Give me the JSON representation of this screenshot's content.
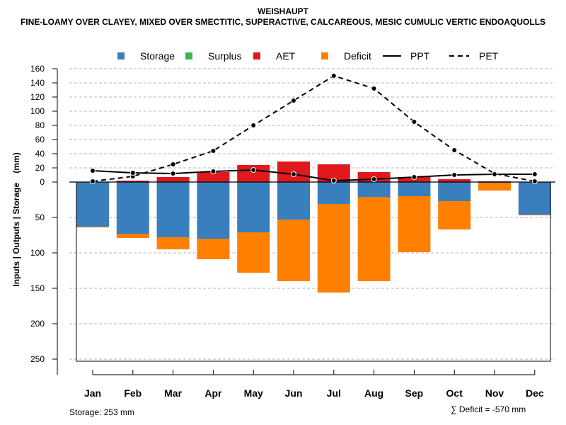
{
  "title": "WEISHAUPT",
  "subtitle": "FINE-LOAMY OVER CLAYEY, MIXED OVER SMECTITIC, SUPERACTIVE, CALCAREOUS, MESIC CUMULIC VERTIC ENDOAQUOLLS",
  "footer": {
    "storage_note": "Storage: 253 mm",
    "deficit_note": "∑ Deficit = -570 mm"
  },
  "colors": {
    "storage": "#3a7fbd",
    "surplus": "#3cb44b",
    "aet": "#e0191d",
    "deficit": "#ff8000",
    "line": "#000000",
    "grid": "#b4b4b4"
  },
  "chart_data": {
    "type": "bar",
    "ylabel": "Inputs | Outputs | Storage    (mm)",
    "categories": [
      "Jan",
      "Feb",
      "Mar",
      "Apr",
      "May",
      "Jun",
      "Jul",
      "Aug",
      "Sep",
      "Oct",
      "Nov",
      "Dec"
    ],
    "legend": [
      "Storage",
      "Surplus",
      "AET",
      "Deficit",
      "PPT",
      "PET"
    ],
    "upper_ticks": [
      0,
      20,
      40,
      60,
      80,
      100,
      120,
      140,
      160
    ],
    "lower_ticks": [
      50,
      100,
      150,
      200,
      250
    ],
    "upper_ylim": [
      0,
      160
    ],
    "lower_ylim": [
      0,
      253
    ],
    "series": [
      {
        "name": "AET",
        "values": [
          0,
          2,
          7,
          14,
          24,
          29,
          25,
          14,
          7,
          4,
          1,
          0
        ]
      },
      {
        "name": "PPT",
        "values": [
          16,
          13,
          12,
          15,
          17,
          11,
          2,
          4,
          7,
          10,
          11,
          11
        ]
      },
      {
        "name": "PET",
        "values": [
          1,
          8,
          25,
          44,
          80,
          115,
          150,
          132,
          85,
          45,
          12,
          1
        ]
      },
      {
        "name": "Storage",
        "values": [
          63,
          73,
          78,
          80,
          71,
          53,
          31,
          21,
          20,
          27,
          1,
          46
        ]
      },
      {
        "name": "Deficit",
        "values": [
          1,
          6,
          17,
          29,
          57,
          87,
          125,
          119,
          79,
          40,
          11,
          1
        ]
      }
    ]
  }
}
